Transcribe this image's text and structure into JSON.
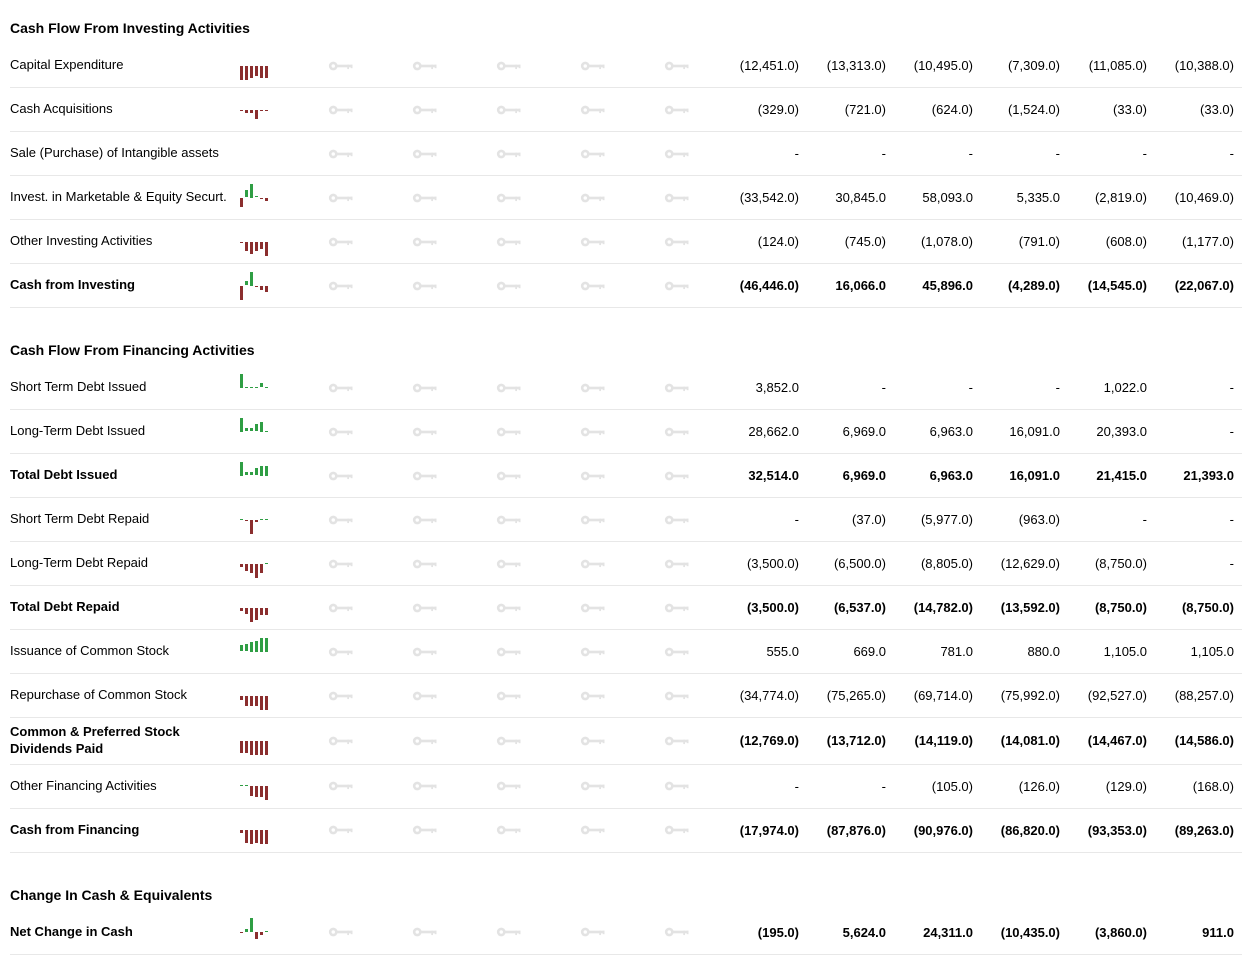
{
  "style": {
    "pos_color": "#2f9e44",
    "neg_color": "#8b2e2e",
    "key_color": "#b0b0b0",
    "border_color": "#e8e8e8",
    "font_size_label": 13,
    "font_size_header": 14,
    "n_lock_cols": 5,
    "n_val_cols": 6
  },
  "sections": [
    {
      "title": "Cash Flow From Investing Activities",
      "rows": [
        {
          "label": "Capital Expenditure",
          "bold": false,
          "spark": [
            -9,
            -9,
            -8,
            -7,
            -8,
            -8
          ],
          "values": [
            "(12,451.0)",
            "(13,313.0)",
            "(10,495.0)",
            "(7,309.0)",
            "(11,085.0)",
            "(10,388.0)"
          ]
        },
        {
          "label": "Cash Acquisitions",
          "bold": false,
          "spark": [
            -1,
            -2,
            -2,
            -6,
            -0.5,
            -0.5
          ],
          "values": [
            "(329.0)",
            "(721.0)",
            "(624.0)",
            "(1,524.0)",
            "(33.0)",
            "(33.0)"
          ]
        },
        {
          "label": "Sale (Purchase) of Intangible assets",
          "bold": false,
          "spark": [],
          "values": [
            "-",
            "-",
            "-",
            "-",
            "-",
            "-"
          ]
        },
        {
          "label": "Invest. in Marketable & Equity Securt.",
          "bold": false,
          "spark": [
            -6,
            5,
            9,
            1,
            -0.5,
            -2
          ],
          "values": [
            "(33,542.0)",
            "30,845.0",
            "58,093.0",
            "5,335.0",
            "(2,819.0)",
            "(10,469.0)"
          ]
        },
        {
          "label": "Other Investing Activities",
          "bold": false,
          "spark": [
            -1,
            -6,
            -8,
            -6,
            -5,
            -9
          ],
          "values": [
            "(124.0)",
            "(745.0)",
            "(1,078.0)",
            "(791.0)",
            "(608.0)",
            "(1,177.0)"
          ]
        },
        {
          "label": "Cash from Investing",
          "bold": true,
          "spark": [
            -9,
            3,
            9,
            -1,
            -3,
            -4
          ],
          "values": [
            "(46,446.0)",
            "16,066.0",
            "45,896.0",
            "(4,289.0)",
            "(14,545.0)",
            "(22,067.0)"
          ]
        }
      ]
    },
    {
      "title": "Cash Flow From Financing Activities",
      "rows": [
        {
          "label": "Short Term Debt Issued",
          "bold": false,
          "spark": [
            9,
            0,
            0,
            0,
            3,
            0
          ],
          "values": [
            "3,852.0",
            "-",
            "-",
            "-",
            "1,022.0",
            "-"
          ]
        },
        {
          "label": "Long-Term Debt Issued",
          "bold": false,
          "spark": [
            9,
            2,
            2,
            5,
            6,
            0
          ],
          "values": [
            "28,662.0",
            "6,969.0",
            "6,963.0",
            "16,091.0",
            "20,393.0",
            "-"
          ]
        },
        {
          "label": "Total Debt Issued",
          "bold": true,
          "spark": [
            9,
            2,
            2,
            5,
            6,
            6
          ],
          "values": [
            "32,514.0",
            "6,969.0",
            "6,963.0",
            "16,091.0",
            "21,415.0",
            "21,393.0"
          ]
        },
        {
          "label": "Short Term Debt Repaid",
          "bold": false,
          "spark": [
            0,
            -0.5,
            -9,
            -1.5,
            0,
            0
          ],
          "values": [
            "-",
            "(37.0)",
            "(5,977.0)",
            "(963.0)",
            "-",
            "-"
          ]
        },
        {
          "label": "Long-Term Debt Repaid",
          "bold": false,
          "spark": [
            -2,
            -5,
            -6,
            -9,
            -6,
            0
          ],
          "values": [
            "(3,500.0)",
            "(6,500.0)",
            "(8,805.0)",
            "(12,629.0)",
            "(8,750.0)",
            "-"
          ]
        },
        {
          "label": "Total Debt Repaid",
          "bold": true,
          "spark": [
            -2,
            -4,
            -9,
            -8,
            -5,
            -5
          ],
          "values": [
            "(3,500.0)",
            "(6,537.0)",
            "(14,782.0)",
            "(13,592.0)",
            "(8,750.0)",
            "(8,750.0)"
          ]
        },
        {
          "label": "Issuance of Common Stock",
          "bold": false,
          "spark": [
            4,
            5,
            6,
            7,
            9,
            9
          ],
          "values": [
            "555.0",
            "669.0",
            "781.0",
            "880.0",
            "1,105.0",
            "1,105.0"
          ]
        },
        {
          "label": "Repurchase of Common Stock",
          "bold": false,
          "spark": [
            -3,
            -7,
            -7,
            -7,
            -9,
            -9
          ],
          "values": [
            "(34,774.0)",
            "(75,265.0)",
            "(69,714.0)",
            "(75,992.0)",
            "(92,527.0)",
            "(88,257.0)"
          ]
        },
        {
          "label": "Common & Preferred Stock Dividends Paid",
          "bold": true,
          "spark": [
            -8,
            -8,
            -9,
            -9,
            -9,
            -9
          ],
          "values": [
            "(12,769.0)",
            "(13,712.0)",
            "(14,119.0)",
            "(14,081.0)",
            "(14,467.0)",
            "(14,586.0)"
          ]
        },
        {
          "label": "Other Financing Activities",
          "bold": false,
          "spark": [
            0,
            0,
            -6,
            -7,
            -7,
            -9
          ],
          "values": [
            "-",
            "-",
            "(105.0)",
            "(126.0)",
            "(129.0)",
            "(168.0)"
          ]
        },
        {
          "label": "Cash from Financing",
          "bold": true,
          "spark": [
            -2,
            -8,
            -9,
            -8,
            -9,
            -9
          ],
          "values": [
            "(17,974.0)",
            "(87,876.0)",
            "(90,976.0)",
            "(86,820.0)",
            "(93,353.0)",
            "(89,263.0)"
          ]
        }
      ]
    },
    {
      "title": "Change In Cash & Equivalents",
      "rows": [
        {
          "label": "Net Change in Cash",
          "bold": true,
          "spark": [
            -0.2,
            2,
            9,
            -4,
            -1.5,
            0.4
          ],
          "values": [
            "(195.0)",
            "5,624.0",
            "24,311.0",
            "(10,435.0)",
            "(3,860.0)",
            "911.0"
          ]
        }
      ]
    }
  ]
}
